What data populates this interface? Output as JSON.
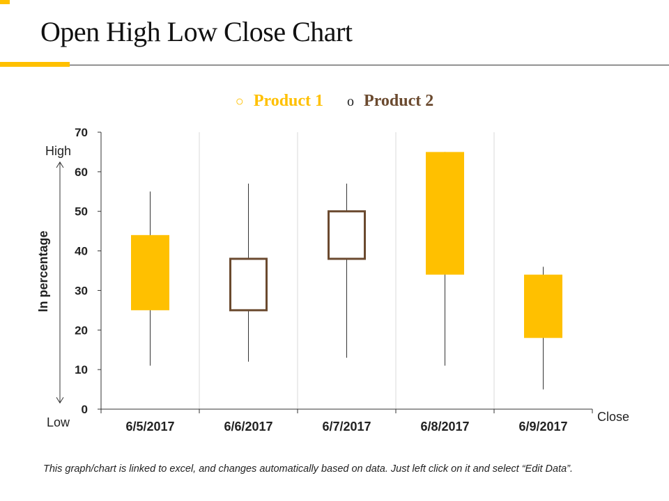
{
  "slide": {
    "title": "Open High Low Close Chart",
    "footnote": "This graph/chart is linked to excel, and changes automatically based on data. Just left click on it and select “Edit Data”."
  },
  "colors": {
    "accent": "#FFC000",
    "product1": "#FFC000",
    "product2": "#6B4A2F"
  },
  "chart_data": {
    "type": "ohlc",
    "title": "",
    "ylabel": "In percentage",
    "ylim": [
      0,
      70
    ],
    "yticks": [
      0,
      10,
      20,
      30,
      40,
      50,
      60,
      70
    ],
    "categories": [
      "6/5/2017",
      "6/6/2017",
      "6/7/2017",
      "6/8/2017",
      "6/9/2017"
    ],
    "legend": [
      {
        "name": "Product 1",
        "color": "#FFC000",
        "marker": "○"
      },
      {
        "name": "Product 2",
        "color": "#6B4A2F",
        "marker": "o"
      }
    ],
    "candles": [
      {
        "date": "6/5/2017",
        "open": 25,
        "high": 55,
        "low": 11,
        "close": 44,
        "series": "Product 1"
      },
      {
        "date": "6/6/2017",
        "open": 38,
        "high": 57,
        "low": 12,
        "close": 25,
        "series": "Product 2"
      },
      {
        "date": "6/7/2017",
        "open": 50,
        "high": 57,
        "low": 13,
        "close": 38,
        "series": "Product 2"
      },
      {
        "date": "6/8/2017",
        "open": 34,
        "high": 65,
        "low": 11,
        "close": 65,
        "series": "Product 1"
      },
      {
        "date": "6/9/2017",
        "open": 18,
        "high": 36,
        "low": 5,
        "close": 34,
        "series": "Product 1"
      }
    ],
    "annotations": {
      "high": "High",
      "low": "Low",
      "close": "Close"
    }
  }
}
